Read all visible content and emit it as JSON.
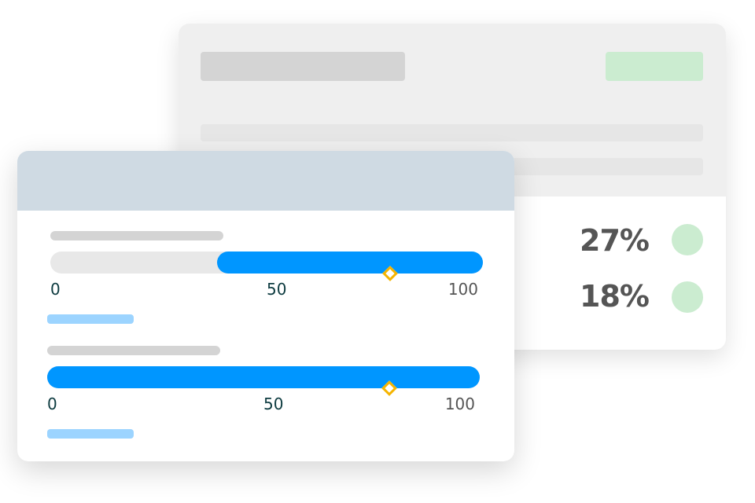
{
  "colors": {
    "accent": "#0096ff",
    "marker": "#f5b400",
    "status": "#cbecd0",
    "light_blue": "#9cd4ff",
    "header": "#cfdae3"
  },
  "stats": [
    {
      "value": "27%",
      "status": "green-dot"
    },
    {
      "value": "18%",
      "status": "green-dot"
    }
  ],
  "sliders": [
    {
      "range_start": 38.5,
      "range_end": 100,
      "marker": 78.5,
      "ticks": [
        "0",
        "50",
        "100"
      ]
    },
    {
      "range_start": 0,
      "range_end": 100,
      "marker": 79,
      "ticks": [
        "0",
        "50",
        "100"
      ]
    }
  ]
}
